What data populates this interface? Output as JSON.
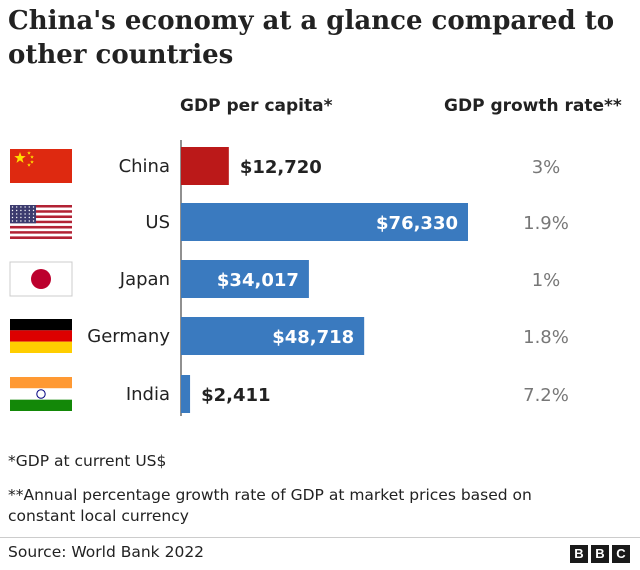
{
  "title": "China's economy at a glance compared to other countries",
  "col_headers": {
    "gdp_per_capita": "GDP per capita*",
    "growth_rate": "GDP growth rate**"
  },
  "chart_data": {
    "type": "bar",
    "orientation": "horizontal",
    "categories": [
      "China",
      "US",
      "Japan",
      "Germany",
      "India"
    ],
    "series": [
      {
        "values": [
          12720,
          76330,
          34017,
          48718,
          2411
        ],
        "labels": [
          "$12,720",
          "$76,330",
          "$34,017",
          "$48,718",
          "$2,411"
        ]
      }
    ],
    "growth_rates": [
      "3%",
      "1.9%",
      "1%",
      "1.8%",
      "7.2%"
    ],
    "bar_colors": [
      "#bb1919",
      "#3a7abf",
      "#3a7abf",
      "#3a7abf",
      "#3a7abf"
    ],
    "flags": [
      "china-flag-icon",
      "us-flag-icon",
      "japan-flag-icon",
      "germany-flag-icon",
      "india-flag-icon"
    ]
  },
  "footnotes": {
    "note1": "*GDP at current US$",
    "note2_line1": "**Annual percentage growth rate of GDP at market prices based on",
    "note2_line2": "constant local currency"
  },
  "source": "Source: World Bank 2022",
  "logo": [
    "B",
    "B",
    "C"
  ]
}
